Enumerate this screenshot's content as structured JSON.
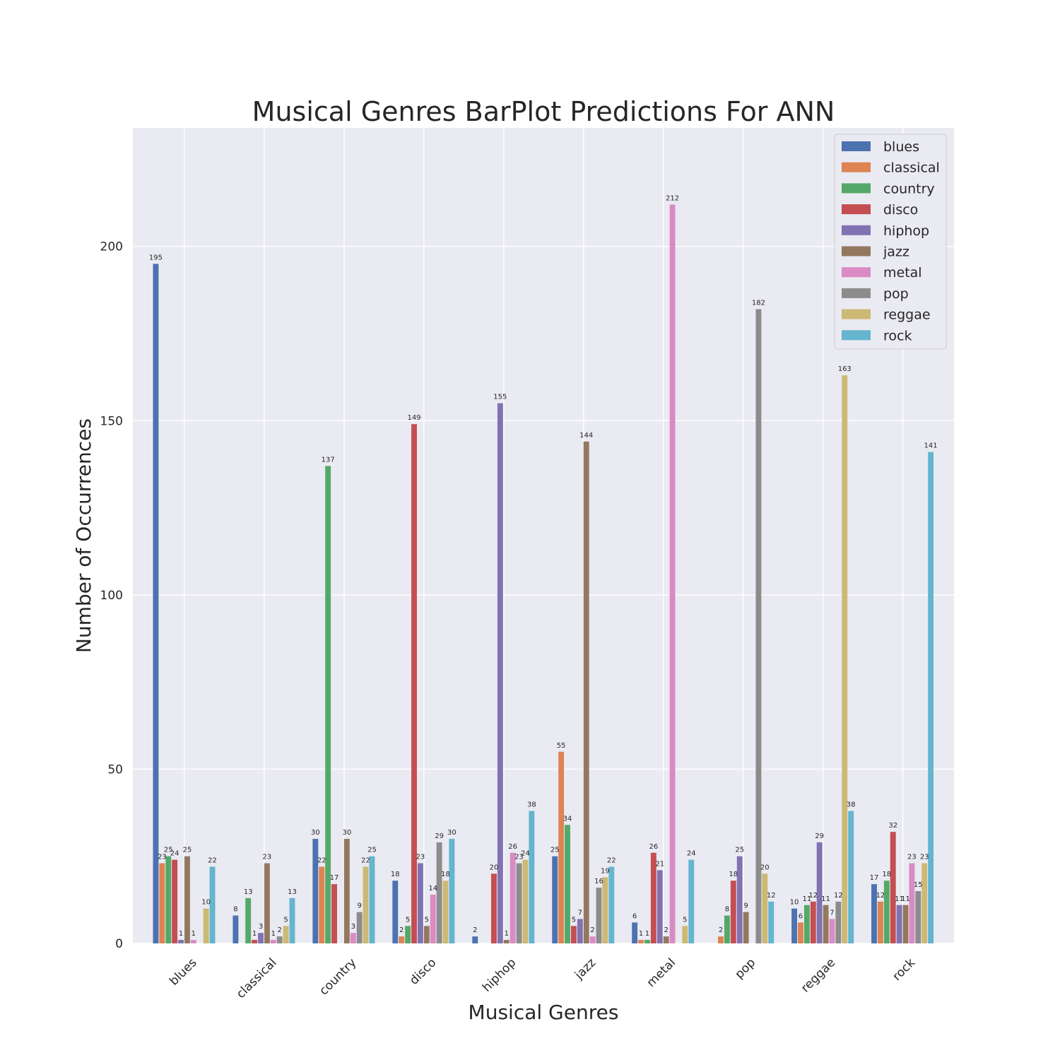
{
  "chart_data": {
    "type": "bar",
    "title": "Musical Genres BarPlot Predictions For ANN",
    "xlabel": "Musical Genres",
    "ylabel": "Number of Occurrences",
    "ylim": [
      0,
      234
    ],
    "yticks": [
      0,
      50,
      100,
      150,
      200
    ],
    "grid": true,
    "legend_position": "top-right",
    "categories": [
      "blues",
      "classical",
      "country",
      "disco",
      "hiphop",
      "jazz",
      "metal",
      "pop",
      "reggae",
      "rock"
    ],
    "series": [
      {
        "name": "blues",
        "color": "#4c72b0",
        "values": [
          195,
          8,
          30,
          18,
          2,
          25,
          6,
          0,
          10,
          17
        ]
      },
      {
        "name": "classical",
        "color": "#dd8452",
        "values": [
          23,
          0,
          22,
          2,
          0,
          55,
          1,
          2,
          6,
          12
        ]
      },
      {
        "name": "country",
        "color": "#55a868",
        "values": [
          25,
          13,
          137,
          5,
          0,
          34,
          1,
          8,
          11,
          18
        ]
      },
      {
        "name": "disco",
        "color": "#c44e52",
        "values": [
          24,
          1,
          17,
          149,
          20,
          5,
          26,
          18,
          12,
          32
        ]
      },
      {
        "name": "hiphop",
        "color": "#8172b3",
        "values": [
          1,
          3,
          0,
          23,
          155,
          7,
          21,
          25,
          29,
          11
        ]
      },
      {
        "name": "jazz",
        "color": "#937860",
        "values": [
          25,
          23,
          30,
          5,
          1,
          144,
          2,
          9,
          11,
          11
        ]
      },
      {
        "name": "metal",
        "color": "#da8bc3",
        "values": [
          1,
          1,
          3,
          14,
          26,
          2,
          212,
          0,
          7,
          23
        ]
      },
      {
        "name": "pop",
        "color": "#8c8c8c",
        "values": [
          0,
          2,
          9,
          29,
          23,
          16,
          0,
          182,
          12,
          15
        ]
      },
      {
        "name": "reggae",
        "color": "#ccb974",
        "values": [
          10,
          5,
          22,
          18,
          24,
          19,
          5,
          20,
          163,
          23
        ]
      },
      {
        "name": "rock",
        "color": "#64b5cd",
        "values": [
          22,
          13,
          25,
          30,
          38,
          22,
          24,
          12,
          38,
          141
        ]
      }
    ]
  }
}
